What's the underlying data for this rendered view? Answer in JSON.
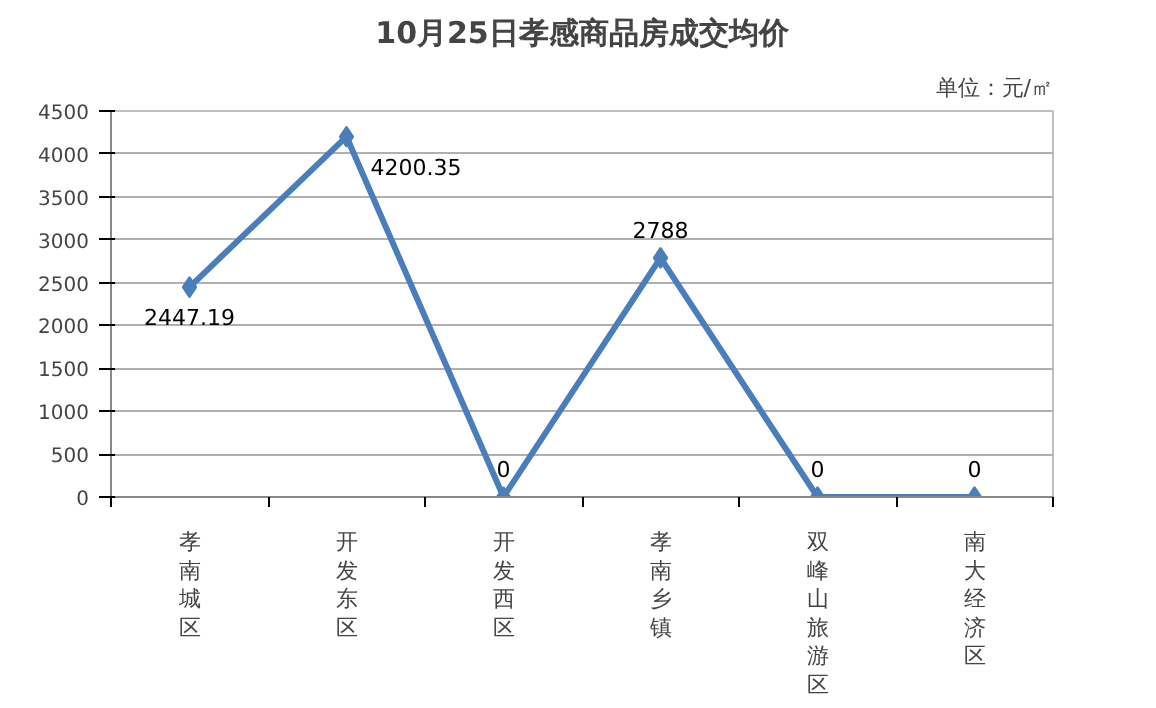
{
  "chart_data": {
    "type": "line",
    "title": "10月25日孝感商品房成交均价",
    "subtitle": "单位：元/㎡",
    "categories": [
      "孝南城区",
      "开发东区",
      "开发西区",
      "孝南乡镇",
      "双峰山旅游区",
      "南大经济区"
    ],
    "series": [
      {
        "color": "#4a7ebb",
        "values": [
          2447.19,
          4200.35,
          0,
          2788,
          0,
          0
        ]
      }
    ],
    "ylim": [
      0,
      4500
    ],
    "yticks": [
      0,
      500,
      1000,
      1500,
      2000,
      2500,
      3000,
      3500,
      4000,
      4500
    ],
    "grid": "y",
    "marker": "diamond",
    "line_style": "solid",
    "data_labels": true
  }
}
